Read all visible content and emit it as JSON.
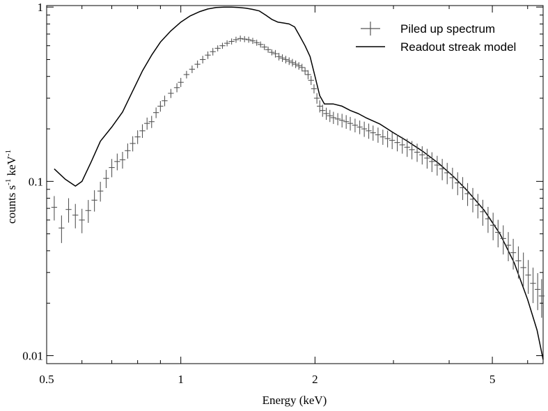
{
  "chart_data": {
    "type": "scatter",
    "title": "",
    "xlabel": "Energy (keV)",
    "ylabel_main": "counts s",
    "ylabel_sup1": "-1",
    "ylabel_mid": " keV",
    "ylabel_sup2": "-1",
    "xscale": "log",
    "yscale": "log",
    "xlim": [
      0.5,
      6.5
    ],
    "ylim": [
      0.009,
      1.02
    ],
    "x_ticks": [
      {
        "value": 0.5,
        "label": "0.5"
      },
      {
        "value": 1,
        "label": "1"
      },
      {
        "value": 2,
        "label": "2"
      },
      {
        "value": 5,
        "label": "5"
      }
    ],
    "y_ticks": [
      {
        "value": 0.01,
        "label": "0.01"
      },
      {
        "value": 0.1,
        "label": "0.1"
      },
      {
        "value": 1,
        "label": "1"
      }
    ],
    "legend_position": "top-right",
    "series": [
      {
        "name": "Piled up spectrum",
        "kind": "errorbar",
        "color": "#555555",
        "x": [
          0.52,
          0.54,
          0.56,
          0.58,
          0.6,
          0.62,
          0.64,
          0.66,
          0.68,
          0.7,
          0.72,
          0.74,
          0.76,
          0.78,
          0.8,
          0.82,
          0.84,
          0.86,
          0.88,
          0.9,
          0.92,
          0.95,
          0.98,
          1.0,
          1.03,
          1.06,
          1.09,
          1.12,
          1.15,
          1.18,
          1.21,
          1.24,
          1.27,
          1.3,
          1.33,
          1.36,
          1.39,
          1.42,
          1.45,
          1.48,
          1.51,
          1.54,
          1.57,
          1.6,
          1.63,
          1.66,
          1.69,
          1.72,
          1.75,
          1.78,
          1.81,
          1.84,
          1.87,
          1.9,
          1.93,
          1.96,
          1.99,
          2.02,
          2.05,
          2.08,
          2.12,
          2.16,
          2.2,
          2.25,
          2.3,
          2.35,
          2.4,
          2.46,
          2.52,
          2.58,
          2.64,
          2.7,
          2.77,
          2.84,
          2.91,
          2.98,
          3.06,
          3.14,
          3.22,
          3.3,
          3.39,
          3.48,
          3.57,
          3.66,
          3.76,
          3.86,
          3.96,
          4.07,
          4.18,
          4.29,
          4.4,
          4.52,
          4.64,
          4.76,
          4.89,
          5.02,
          5.15,
          5.29,
          5.43,
          5.57,
          5.72,
          5.87,
          6.02,
          6.17,
          6.32,
          6.45
        ],
        "y": [
          0.071,
          0.054,
          0.069,
          0.064,
          0.06,
          0.068,
          0.078,
          0.088,
          0.104,
          0.12,
          0.13,
          0.133,
          0.15,
          0.165,
          0.18,
          0.195,
          0.215,
          0.22,
          0.248,
          0.27,
          0.29,
          0.32,
          0.345,
          0.37,
          0.41,
          0.44,
          0.47,
          0.5,
          0.53,
          0.555,
          0.58,
          0.6,
          0.62,
          0.635,
          0.65,
          0.66,
          0.655,
          0.65,
          0.64,
          0.625,
          0.61,
          0.59,
          0.57,
          0.55,
          0.54,
          0.52,
          0.51,
          0.5,
          0.49,
          0.48,
          0.47,
          0.46,
          0.45,
          0.43,
          0.41,
          0.38,
          0.34,
          0.3,
          0.27,
          0.255,
          0.245,
          0.238,
          0.232,
          0.228,
          0.224,
          0.22,
          0.215,
          0.21,
          0.205,
          0.2,
          0.195,
          0.19,
          0.185,
          0.18,
          0.176,
          0.172,
          0.167,
          0.162,
          0.157,
          0.152,
          0.147,
          0.142,
          0.136,
          0.13,
          0.124,
          0.118,
          0.112,
          0.105,
          0.098,
          0.092,
          0.085,
          0.079,
          0.073,
          0.067,
          0.061,
          0.056,
          0.051,
          0.047,
          0.043,
          0.039,
          0.035,
          0.032,
          0.029,
          0.026,
          0.024,
          0.022
        ],
        "y_err_frac": [
          0.16,
          0.18,
          0.16,
          0.16,
          0.16,
          0.15,
          0.14,
          0.13,
          0.12,
          0.12,
          0.11,
          0.11,
          0.1,
          0.1,
          0.09,
          0.09,
          0.08,
          0.08,
          0.07,
          0.07,
          0.07,
          0.06,
          0.06,
          0.06,
          0.05,
          0.05,
          0.05,
          0.05,
          0.05,
          0.05,
          0.04,
          0.04,
          0.04,
          0.04,
          0.04,
          0.04,
          0.04,
          0.04,
          0.04,
          0.04,
          0.04,
          0.04,
          0.04,
          0.04,
          0.05,
          0.05,
          0.05,
          0.05,
          0.05,
          0.05,
          0.05,
          0.05,
          0.05,
          0.05,
          0.06,
          0.06,
          0.06,
          0.07,
          0.08,
          0.08,
          0.08,
          0.08,
          0.08,
          0.08,
          0.09,
          0.09,
          0.09,
          0.09,
          0.09,
          0.1,
          0.1,
          0.1,
          0.1,
          0.1,
          0.11,
          0.11,
          0.11,
          0.11,
          0.12,
          0.12,
          0.12,
          0.12,
          0.13,
          0.13,
          0.13,
          0.14,
          0.14,
          0.14,
          0.15,
          0.15,
          0.15,
          0.16,
          0.16,
          0.17,
          0.17,
          0.18,
          0.18,
          0.19,
          0.19,
          0.2,
          0.21,
          0.22,
          0.22,
          0.23,
          0.24,
          0.25
        ]
      },
      {
        "name": "Readout streak model",
        "kind": "line",
        "color": "#000000",
        "x": [
          0.52,
          0.55,
          0.58,
          0.6,
          0.63,
          0.66,
          0.7,
          0.74,
          0.78,
          0.82,
          0.86,
          0.9,
          0.95,
          1.0,
          1.05,
          1.1,
          1.15,
          1.2,
          1.25,
          1.3,
          1.35,
          1.4,
          1.45,
          1.5,
          1.55,
          1.6,
          1.65,
          1.7,
          1.75,
          1.8,
          1.85,
          1.9,
          1.95,
          2.0,
          2.05,
          2.1,
          2.2,
          2.3,
          2.4,
          2.5,
          2.6,
          2.8,
          3.0,
          3.2,
          3.5,
          3.8,
          4.1,
          4.4,
          4.8,
          5.2,
          5.6,
          6.0,
          6.3,
          6.5
        ],
        "y": [
          0.118,
          0.103,
          0.094,
          0.1,
          0.13,
          0.17,
          0.205,
          0.25,
          0.33,
          0.43,
          0.53,
          0.63,
          0.73,
          0.82,
          0.89,
          0.94,
          0.975,
          0.995,
          1.0,
          1.0,
          0.995,
          0.985,
          0.97,
          0.95,
          0.9,
          0.85,
          0.82,
          0.81,
          0.8,
          0.77,
          0.68,
          0.6,
          0.52,
          0.4,
          0.31,
          0.278,
          0.278,
          0.27,
          0.255,
          0.245,
          0.232,
          0.213,
          0.19,
          0.172,
          0.148,
          0.126,
          0.106,
          0.088,
          0.068,
          0.05,
          0.034,
          0.021,
          0.014,
          0.0095
        ]
      }
    ]
  }
}
